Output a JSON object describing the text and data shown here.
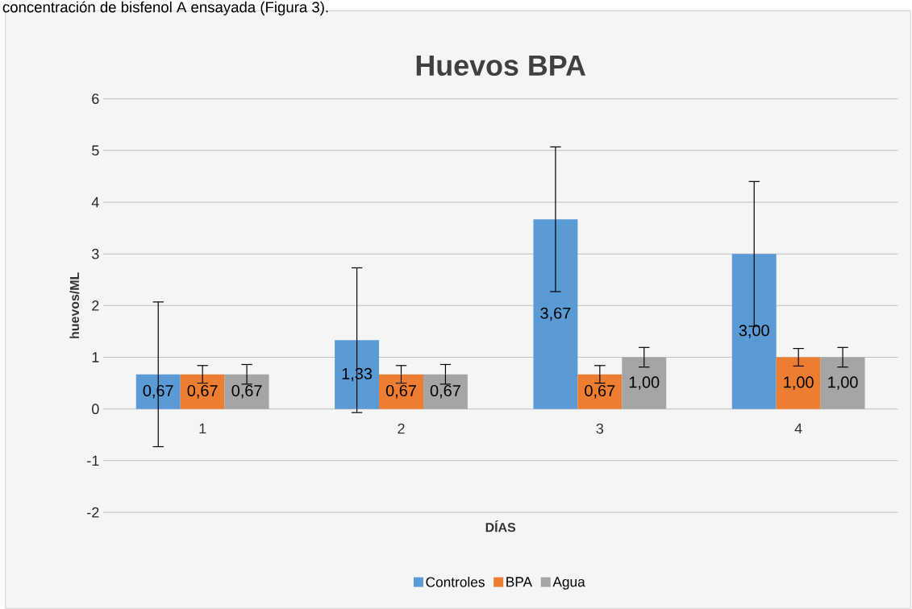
{
  "chart_data": {
    "type": "bar",
    "title": "Huevos BPA",
    "xlabel": "DÍAS",
    "ylabel": "huevos/ML",
    "annotations": [
      "concentración de bisfenol A ensayada (Figura 3)."
    ],
    "categories": [
      "1",
      "2",
      "3",
      "4"
    ],
    "series": [
      {
        "name": "Controles",
        "color": "#5b9bd5",
        "values": [
          0.67,
          1.33,
          3.67,
          3.0
        ],
        "errors": [
          1.4,
          1.4,
          1.4,
          1.4
        ],
        "value_labels": [
          "0,67",
          "1,33",
          "3,67",
          "3,00"
        ]
      },
      {
        "name": "BPA",
        "color": "#ed7d31",
        "values": [
          0.67,
          0.67,
          0.67,
          1.0
        ],
        "errors": [
          0.17,
          0.17,
          0.17,
          0.17
        ],
        "value_labels": [
          "0,67",
          "0,67",
          "0,67",
          "1,00"
        ]
      },
      {
        "name": "Agua",
        "color": "#a5a5a5",
        "values": [
          0.67,
          0.67,
          1.0,
          1.0
        ],
        "errors": [
          0.19,
          0.19,
          0.19,
          0.19
        ],
        "value_labels": [
          "0,67",
          "0,67",
          "1,00",
          "1,00"
        ]
      }
    ],
    "ylim": [
      -2,
      6
    ],
    "yticks": [
      -2,
      -1,
      0,
      1,
      2,
      3,
      4,
      5,
      6
    ],
    "grid": "y",
    "legend": "bottom"
  }
}
